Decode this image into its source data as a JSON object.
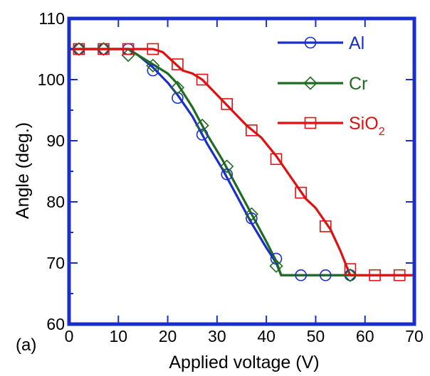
{
  "chart_data": {
    "type": "line",
    "xlabel": "Applied voltage (V)",
    "ylabel": "Angle (deg.)",
    "panel_label": "(a)",
    "xlim": [
      0,
      70
    ],
    "ylim": [
      60,
      110
    ],
    "xticks": [
      "0",
      "10",
      "20",
      "30",
      "40",
      "50",
      "60",
      "70"
    ],
    "yticks": [
      "60",
      "70",
      "80",
      "90",
      "100",
      "110"
    ],
    "grid": false,
    "legend_position": "top-right",
    "frame_color": "#1a2fc9",
    "series": [
      {
        "name": "Al",
        "color": "#1a2fc9",
        "marker": "circle",
        "points": [
          [
            2,
            105
          ],
          [
            7,
            105
          ],
          [
            12,
            105
          ],
          [
            17,
            101.5
          ],
          [
            22,
            97
          ],
          [
            27,
            91
          ],
          [
            32,
            84.5
          ],
          [
            37,
            77.3
          ],
          [
            42,
            70.7
          ],
          [
            47,
            68
          ],
          [
            52,
            68
          ],
          [
            57,
            68
          ]
        ],
        "curve": [
          [
            0,
            105
          ],
          [
            12,
            105
          ],
          [
            14,
            104
          ],
          [
            17,
            102
          ],
          [
            20,
            99.5
          ],
          [
            22,
            97.5
          ],
          [
            25,
            94
          ],
          [
            28,
            89.5
          ],
          [
            31,
            85.5
          ],
          [
            34,
            81
          ],
          [
            37,
            76.5
          ],
          [
            40,
            72.5
          ],
          [
            42,
            70
          ],
          [
            43,
            68
          ],
          [
            57,
            68
          ]
        ]
      },
      {
        "name": "Cr",
        "color": "#1f6b1f",
        "marker": "diamond",
        "points": [
          [
            2,
            105
          ],
          [
            7,
            105
          ],
          [
            12,
            104
          ],
          [
            17,
            102.3
          ],
          [
            22,
            98.7
          ],
          [
            27,
            92.5
          ],
          [
            32,
            85.8
          ],
          [
            37,
            78
          ],
          [
            42,
            69.5
          ],
          [
            57,
            68
          ]
        ],
        "curve": [
          [
            0,
            105
          ],
          [
            12,
            105
          ],
          [
            14,
            104
          ],
          [
            17,
            102.5
          ],
          [
            20,
            101
          ],
          [
            22,
            99.3
          ],
          [
            25,
            95.5
          ],
          [
            28,
            91
          ],
          [
            31,
            87
          ],
          [
            34,
            82.5
          ],
          [
            37,
            78
          ],
          [
            40,
            73.5
          ],
          [
            42,
            70.3
          ],
          [
            43,
            68
          ],
          [
            70,
            68
          ]
        ]
      },
      {
        "name": "SiO",
        "name_subscript": "2",
        "color": "#e01010",
        "marker": "square",
        "points": [
          [
            2,
            105
          ],
          [
            7,
            105
          ],
          [
            12,
            105
          ],
          [
            17,
            105
          ],
          [
            22,
            102.5
          ],
          [
            27,
            100
          ],
          [
            32,
            96
          ],
          [
            37,
            91.7
          ],
          [
            42,
            87
          ],
          [
            47,
            81.5
          ],
          [
            52,
            76
          ],
          [
            57,
            69
          ],
          [
            62,
            68
          ],
          [
            67,
            68
          ]
        ],
        "curve": [
          [
            0,
            105
          ],
          [
            17,
            105
          ],
          [
            19,
            104.5
          ],
          [
            21,
            103
          ],
          [
            23,
            101.5
          ],
          [
            25,
            101
          ],
          [
            27,
            100
          ],
          [
            30,
            97.5
          ],
          [
            33,
            95
          ],
          [
            36,
            92.5
          ],
          [
            39,
            90.5
          ],
          [
            42,
            87.5
          ],
          [
            45,
            84
          ],
          [
            48,
            80.5
          ],
          [
            50,
            79
          ],
          [
            53,
            75.5
          ],
          [
            55,
            72
          ],
          [
            57,
            68
          ],
          [
            70,
            68
          ]
        ]
      }
    ]
  }
}
